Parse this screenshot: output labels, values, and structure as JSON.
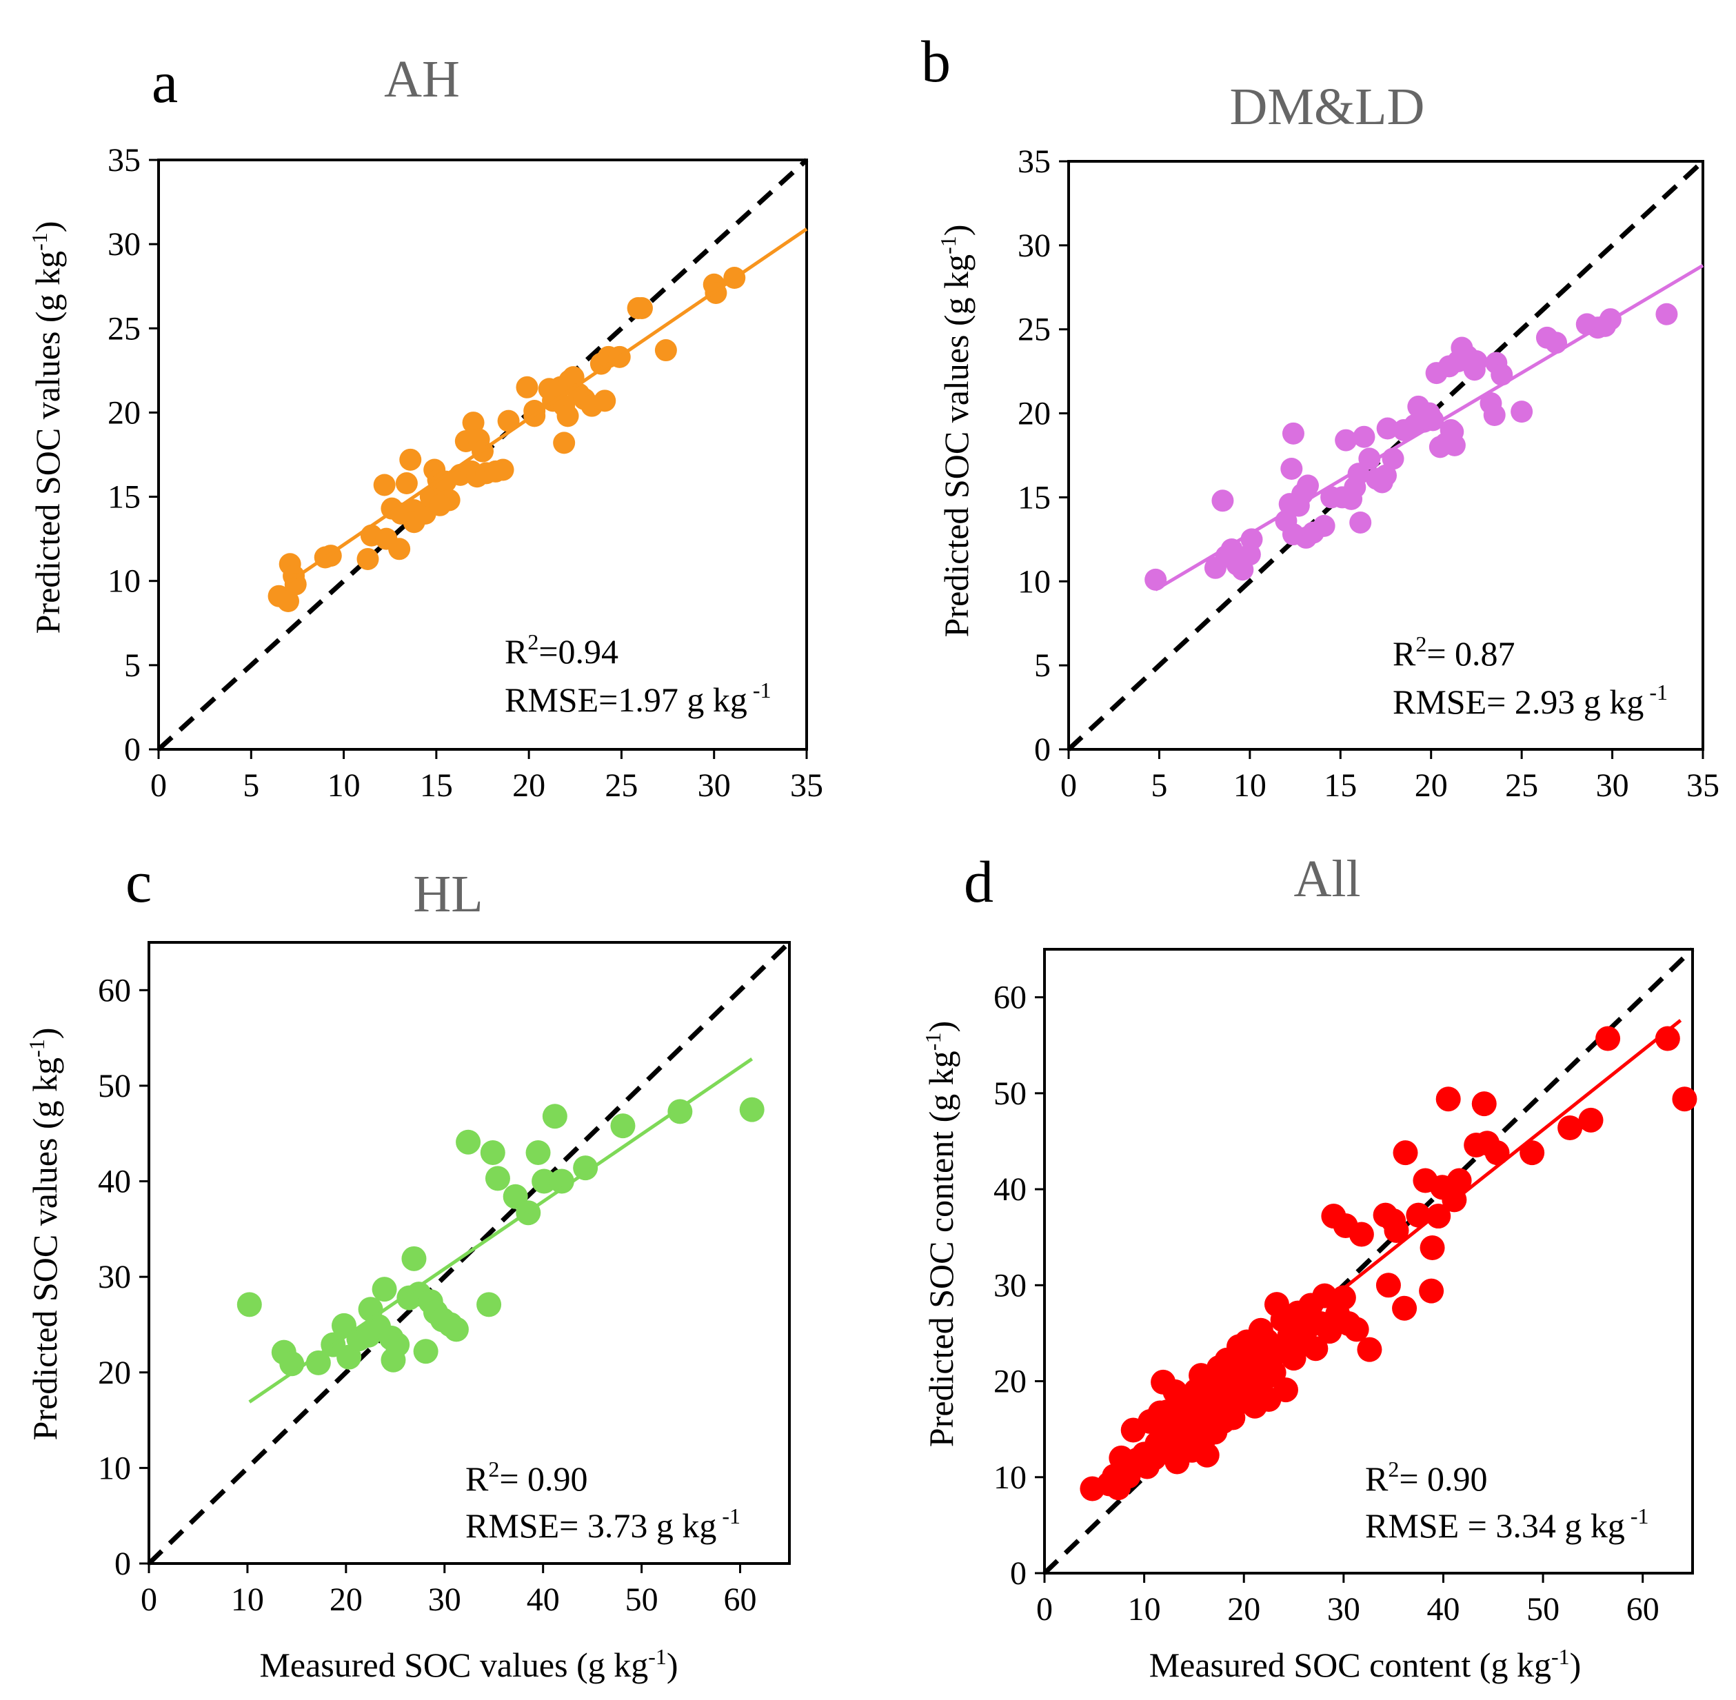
{
  "chart_data": [
    {
      "panel": "a",
      "type": "scatter",
      "title": "AH",
      "xlabel": "",
      "ylabel": "Predicted SOC values (g kg",
      "ylabel_sup": "-1",
      "xlim": [
        0,
        35
      ],
      "ylim": [
        0,
        35
      ],
      "xticks": [
        0,
        5,
        10,
        15,
        20,
        25,
        30,
        35
      ],
      "yticks": [
        0,
        5,
        10,
        15,
        20,
        25,
        30,
        35
      ],
      "color": "#F7941D",
      "r2_text": "=0.94",
      "rmse_text": "RMSE=1.97 g kg",
      "fit_line": [
        [
          7,
          9.9
        ],
        [
          35,
          30.9
        ]
      ],
      "points": [
        [
          6.5,
          9.1
        ],
        [
          7.0,
          8.8
        ],
        [
          7.1,
          11.0
        ],
        [
          7.3,
          10.3
        ],
        [
          7.4,
          9.8
        ],
        [
          9.0,
          11.4
        ],
        [
          9.3,
          11.5
        ],
        [
          11.3,
          11.3
        ],
        [
          11.5,
          12.7
        ],
        [
          12.2,
          15.7
        ],
        [
          12.3,
          12.5
        ],
        [
          12.6,
          14.3
        ],
        [
          13.0,
          11.9
        ],
        [
          13.1,
          14.0
        ],
        [
          13.4,
          15.8
        ],
        [
          13.6,
          17.2
        ],
        [
          13.8,
          14.2
        ],
        [
          13.8,
          13.5
        ],
        [
          14.4,
          14.0
        ],
        [
          14.7,
          15.0
        ],
        [
          14.9,
          16.6
        ],
        [
          15.1,
          16.0
        ],
        [
          15.3,
          15.8
        ],
        [
          15.5,
          15.9
        ],
        [
          15.7,
          14.8
        ],
        [
          15.2,
          14.5
        ],
        [
          16.3,
          16.3
        ],
        [
          16.6,
          18.3
        ],
        [
          16.9,
          16.5
        ],
        [
          17.0,
          19.4
        ],
        [
          17.2,
          16.2
        ],
        [
          17.3,
          18.4
        ],
        [
          17.5,
          17.7
        ],
        [
          17.7,
          16.4
        ],
        [
          18.2,
          16.5
        ],
        [
          18.6,
          16.6
        ],
        [
          18.9,
          19.5
        ],
        [
          19.9,
          21.5
        ],
        [
          20.3,
          20.1
        ],
        [
          20.3,
          19.8
        ],
        [
          21.1,
          21.4
        ],
        [
          21.3,
          20.7
        ],
        [
          21.7,
          21.5
        ],
        [
          21.9,
          20.4
        ],
        [
          21.9,
          18.2
        ],
        [
          22.1,
          19.8
        ],
        [
          22.2,
          21.9
        ],
        [
          22.4,
          22.1
        ],
        [
          22.7,
          21.1
        ],
        [
          23.0,
          20.8
        ],
        [
          23.4,
          20.4
        ],
        [
          23.9,
          22.9
        ],
        [
          24.1,
          20.7
        ],
        [
          24.3,
          23.3
        ],
        [
          24.9,
          23.3
        ],
        [
          25.9,
          26.2
        ],
        [
          26.1,
          26.2
        ],
        [
          27.4,
          23.7
        ],
        [
          30.0,
          27.6
        ],
        [
          30.1,
          27.1
        ],
        [
          31.1,
          28.0
        ]
      ]
    },
    {
      "panel": "b",
      "type": "scatter",
      "title": "DM&LD",
      "xlabel": "",
      "ylabel": "Predicted SOC values (g kg",
      "ylabel_sup": "-1",
      "xlim": [
        0,
        35
      ],
      "ylim": [
        0,
        35
      ],
      "xticks": [
        0,
        5,
        10,
        15,
        20,
        25,
        30,
        35
      ],
      "yticks": [
        0,
        5,
        10,
        15,
        20,
        25,
        30,
        35
      ],
      "color": "#DA70E0",
      "r2_text": "= 0.87",
      "rmse_text": "RMSE= 2.93 g kg",
      "fit_line": [
        [
          4.8,
          9.5
        ],
        [
          35,
          28.8
        ]
      ],
      "points": [
        [
          4.8,
          10.1
        ],
        [
          8.5,
          14.8
        ],
        [
          8.1,
          10.8
        ],
        [
          8.7,
          11.5
        ],
        [
          9.0,
          11.9
        ],
        [
          9.3,
          11.0
        ],
        [
          9.6,
          10.7
        ],
        [
          10.0,
          11.6
        ],
        [
          10.1,
          12.5
        ],
        [
          12.0,
          13.6
        ],
        [
          12.2,
          14.6
        ],
        [
          12.3,
          16.7
        ],
        [
          12.4,
          18.8
        ],
        [
          12.4,
          12.8
        ],
        [
          12.7,
          14.5
        ],
        [
          12.9,
          15.2
        ],
        [
          13.1,
          12.6
        ],
        [
          13.2,
          15.7
        ],
        [
          13.5,
          12.9
        ],
        [
          14.1,
          13.3
        ],
        [
          14.5,
          15.0
        ],
        [
          15.1,
          15.0
        ],
        [
          15.3,
          18.4
        ],
        [
          15.6,
          14.9
        ],
        [
          15.8,
          15.6
        ],
        [
          16.0,
          16.4
        ],
        [
          16.1,
          13.5
        ],
        [
          16.3,
          18.6
        ],
        [
          16.6,
          17.3
        ],
        [
          17.0,
          16.1
        ],
        [
          17.2,
          16.0
        ],
        [
          17.3,
          15.9
        ],
        [
          17.5,
          16.3
        ],
        [
          17.6,
          19.1
        ],
        [
          17.9,
          17.3
        ],
        [
          18.5,
          19.0
        ],
        [
          19.1,
          19.3
        ],
        [
          19.3,
          20.4
        ],
        [
          19.6,
          19.5
        ],
        [
          19.9,
          20.0
        ],
        [
          20.1,
          19.6
        ],
        [
          20.3,
          22.4
        ],
        [
          20.5,
          18.0
        ],
        [
          20.8,
          18.2
        ],
        [
          21.0,
          22.8
        ],
        [
          21.1,
          19.0
        ],
        [
          21.2,
          18.9
        ],
        [
          21.3,
          18.1
        ],
        [
          21.5,
          23.1
        ],
        [
          21.7,
          23.9
        ],
        [
          22.0,
          23.4
        ],
        [
          22.4,
          22.6
        ],
        [
          22.5,
          23.1
        ],
        [
          23.3,
          20.6
        ],
        [
          23.5,
          19.9
        ],
        [
          23.6,
          23.0
        ],
        [
          23.9,
          22.3
        ],
        [
          25.0,
          20.1
        ],
        [
          26.4,
          24.5
        ],
        [
          26.9,
          24.2
        ],
        [
          28.6,
          25.3
        ],
        [
          29.2,
          25.1
        ],
        [
          29.6,
          25.2
        ],
        [
          29.9,
          25.6
        ],
        [
          33.0,
          25.9
        ]
      ]
    },
    {
      "panel": "c",
      "type": "scatter",
      "title": "HL",
      "xlabel": "Measured SOC values (g kg",
      "xlabel_sup": "-1",
      "ylabel": "Predicted SOC values (g kg",
      "ylabel_sup": "-1",
      "xlim": [
        0,
        65
      ],
      "ylim": [
        0,
        65
      ],
      "xticks": [
        0,
        10,
        20,
        30,
        40,
        50,
        60
      ],
      "yticks": [
        0,
        10,
        20,
        30,
        40,
        50,
        60
      ],
      "color": "#7ED957",
      "r2_text": "= 0.90",
      "rmse_text": "RMSE= 3.73 g kg",
      "fit_line": [
        [
          10.2,
          16.9
        ],
        [
          61.2,
          52.8
        ]
      ],
      "points": [
        [
          10.2,
          27.1
        ],
        [
          13.7,
          22.1
        ],
        [
          14.5,
          20.9
        ],
        [
          17.2,
          21.0
        ],
        [
          18.7,
          22.9
        ],
        [
          19.8,
          24.9
        ],
        [
          20.3,
          21.6
        ],
        [
          21.3,
          23.5
        ],
        [
          22.3,
          23.9
        ],
        [
          22.5,
          26.6
        ],
        [
          23.3,
          24.8
        ],
        [
          23.9,
          28.7
        ],
        [
          24.6,
          23.6
        ],
        [
          24.8,
          21.3
        ],
        [
          25.2,
          22.9
        ],
        [
          26.4,
          27.8
        ],
        [
          26.9,
          31.9
        ],
        [
          27.4,
          28.2
        ],
        [
          28.1,
          22.2
        ],
        [
          28.6,
          27.4
        ],
        [
          29.1,
          26.3
        ],
        [
          29.8,
          25.5
        ],
        [
          30.6,
          25.0
        ],
        [
          31.2,
          24.5
        ],
        [
          32.4,
          44.1
        ],
        [
          34.5,
          27.1
        ],
        [
          34.9,
          43.0
        ],
        [
          35.4,
          40.3
        ],
        [
          37.2,
          38.4
        ],
        [
          38.5,
          36.7
        ],
        [
          39.5,
          43.0
        ],
        [
          40.1,
          40.0
        ],
        [
          41.2,
          46.8
        ],
        [
          41.9,
          40.0
        ],
        [
          44.3,
          41.4
        ],
        [
          48.1,
          45.8
        ],
        [
          53.9,
          47.3
        ],
        [
          61.2,
          47.5
        ]
      ]
    },
    {
      "panel": "d",
      "type": "scatter",
      "title": "All",
      "xlabel": "Measured SOC content (g kg",
      "xlabel_sup": "-1",
      "ylabel": "Predicted SOC content (g kg",
      "ylabel_sup": "-1",
      "xlim": [
        0,
        65
      ],
      "ylim": [
        0,
        65
      ],
      "xticks": [
        0,
        10,
        20,
        30,
        40,
        50,
        60
      ],
      "yticks": [
        0,
        10,
        20,
        30,
        40,
        50,
        60
      ],
      "color": "#FF0000",
      "r2_text": "= 0.90",
      "rmse_text": "RMSE = 3.34 g kg",
      "fit_line": [
        [
          5,
          9.0
        ],
        [
          63.8,
          57.6
        ]
      ],
      "points": [
        [
          4.8,
          8.8
        ],
        [
          6.5,
          9.3
        ],
        [
          7.0,
          10.1
        ],
        [
          7.4,
          8.9
        ],
        [
          7.7,
          12.0
        ],
        [
          8.2,
          11.2
        ],
        [
          8.4,
          10.1
        ],
        [
          8.9,
          14.9
        ],
        [
          9.3,
          11.8
        ],
        [
          10.0,
          12.4
        ],
        [
          10.3,
          11.1
        ],
        [
          10.6,
          15.8
        ],
        [
          11.0,
          12.0
        ],
        [
          11.3,
          13.5
        ],
        [
          11.6,
          16.7
        ],
        [
          11.9,
          19.9
        ],
        [
          12.2,
          14.1
        ],
        [
          12.3,
          16.8
        ],
        [
          12.6,
          12.7
        ],
        [
          12.9,
          15.0
        ],
        [
          13.1,
          18.9
        ],
        [
          13.3,
          11.6
        ],
        [
          13.5,
          14.6
        ],
        [
          13.7,
          17.2
        ],
        [
          13.9,
          13.3
        ],
        [
          14.2,
          16.0
        ],
        [
          14.4,
          18.3
        ],
        [
          14.6,
          15.4
        ],
        [
          14.8,
          12.8
        ],
        [
          15.0,
          17.5
        ],
        [
          15.2,
          19.0
        ],
        [
          15.3,
          14.4
        ],
        [
          15.5,
          16.6
        ],
        [
          15.7,
          20.6
        ],
        [
          15.9,
          13.8
        ],
        [
          16.1,
          18.0
        ],
        [
          16.3,
          12.3
        ],
        [
          16.5,
          15.6
        ],
        [
          16.7,
          17.9
        ],
        [
          16.9,
          19.8
        ],
        [
          17.1,
          14.7
        ],
        [
          17.3,
          16.4
        ],
        [
          17.5,
          21.4
        ],
        [
          17.7,
          18.4
        ],
        [
          17.9,
          15.8
        ],
        [
          18.1,
          19.2
        ],
        [
          18.3,
          22.2
        ],
        [
          18.5,
          17.6
        ],
        [
          18.7,
          20.5
        ],
        [
          18.9,
          16.2
        ],
        [
          19.1,
          18.7
        ],
        [
          19.3,
          21.8
        ],
        [
          19.5,
          23.6
        ],
        [
          19.7,
          19.9
        ],
        [
          19.9,
          17.9
        ],
        [
          20.1,
          21.0
        ],
        [
          20.3,
          24.1
        ],
        [
          20.5,
          18.6
        ],
        [
          20.7,
          22.5
        ],
        [
          20.9,
          20.2
        ],
        [
          21.1,
          17.4
        ],
        [
          21.3,
          23.4
        ],
        [
          21.5,
          19.5
        ],
        [
          21.7,
          25.3
        ],
        [
          21.9,
          21.9
        ],
        [
          22.1,
          20.3
        ],
        [
          22.3,
          24.2
        ],
        [
          22.5,
          18.1
        ],
        [
          22.7,
          22.8
        ],
        [
          23.0,
          20.9
        ],
        [
          23.3,
          28.0
        ],
        [
          23.6,
          23.1
        ],
        [
          23.9,
          26.4
        ],
        [
          24.2,
          19.1
        ],
        [
          24.6,
          24.8
        ],
        [
          25.0,
          22.4
        ],
        [
          25.4,
          27.1
        ],
        [
          25.8,
          24.0
        ],
        [
          26.3,
          25.5
        ],
        [
          26.7,
          27.9
        ],
        [
          27.2,
          23.4
        ],
        [
          27.7,
          26.0
        ],
        [
          28.1,
          28.9
        ],
        [
          28.6,
          25.2
        ],
        [
          29.0,
          37.2
        ],
        [
          29.4,
          27.0
        ],
        [
          30.0,
          28.7
        ],
        [
          30.2,
          36.2
        ],
        [
          30.5,
          26.0
        ],
        [
          31.3,
          25.4
        ],
        [
          31.8,
          35.3
        ],
        [
          32.6,
          23.3
        ],
        [
          34.2,
          37.3
        ],
        [
          34.5,
          30.0
        ],
        [
          35.0,
          36.7
        ],
        [
          35.3,
          35.7
        ],
        [
          36.1,
          27.6
        ],
        [
          36.2,
          43.8
        ],
        [
          37.5,
          37.3
        ],
        [
          38.2,
          40.9
        ],
        [
          38.8,
          29.4
        ],
        [
          38.9,
          33.9
        ],
        [
          39.5,
          37.2
        ],
        [
          39.9,
          40.2
        ],
        [
          40.5,
          49.4
        ],
        [
          41.1,
          38.9
        ],
        [
          41.6,
          40.9
        ],
        [
          43.3,
          44.6
        ],
        [
          44.1,
          48.9
        ],
        [
          44.4,
          44.8
        ],
        [
          45.4,
          43.8
        ],
        [
          48.9,
          43.8
        ],
        [
          52.7,
          46.4
        ],
        [
          54.8,
          47.2
        ],
        [
          56.5,
          55.7
        ],
        [
          62.5,
          55.7
        ],
        [
          64.2,
          49.4
        ]
      ]
    }
  ]
}
